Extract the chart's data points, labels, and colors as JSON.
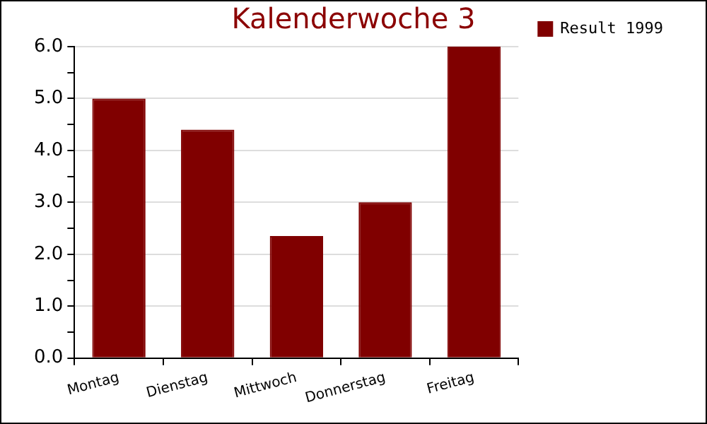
{
  "chart_data": {
    "type": "bar",
    "title": "Kalenderwoche 3",
    "categories": [
      "Montag",
      "Dienstag",
      "Mittwoch",
      "Donnerstag",
      "Freitag"
    ],
    "series": [
      {
        "name": "Result 1999",
        "color": "#800000",
        "values": [
          5.0,
          4.4,
          2.35,
          3.0,
          6.0
        ]
      }
    ],
    "ylim": [
      0,
      6
    ],
    "yticks": [
      {
        "value": 0,
        "label": "0.0"
      },
      {
        "value": 0.5,
        "label": null
      },
      {
        "value": 1,
        "label": "1.0"
      },
      {
        "value": 1.5,
        "label": null
      },
      {
        "value": 2,
        "label": "2.0"
      },
      {
        "value": 2.5,
        "label": null
      },
      {
        "value": 3,
        "label": "3.0"
      },
      {
        "value": 3.5,
        "label": null
      },
      {
        "value": 4,
        "label": "4.0"
      },
      {
        "value": 4.5,
        "label": null
      },
      {
        "value": 5,
        "label": "5.0"
      },
      {
        "value": 5.5,
        "label": null
      },
      {
        "value": 6,
        "label": "6.0"
      }
    ],
    "grid": "y",
    "legend": "right"
  }
}
